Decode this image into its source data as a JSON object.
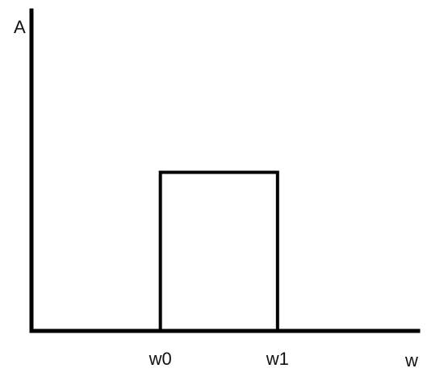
{
  "chart_data": {
    "type": "line",
    "title": "",
    "xlabel": "w",
    "ylabel": "A",
    "grid": false,
    "x_ticks": [
      {
        "value": 0,
        "label": "w0"
      },
      {
        "value": 1,
        "label": "w1"
      }
    ],
    "series": [
      {
        "x": [
          0,
          0,
          1,
          1
        ],
        "y": [
          0,
          1,
          1,
          0
        ]
      }
    ],
    "xlim": [
      -1.1,
      2.2
    ],
    "ylim": [
      0,
      2.02
    ]
  }
}
